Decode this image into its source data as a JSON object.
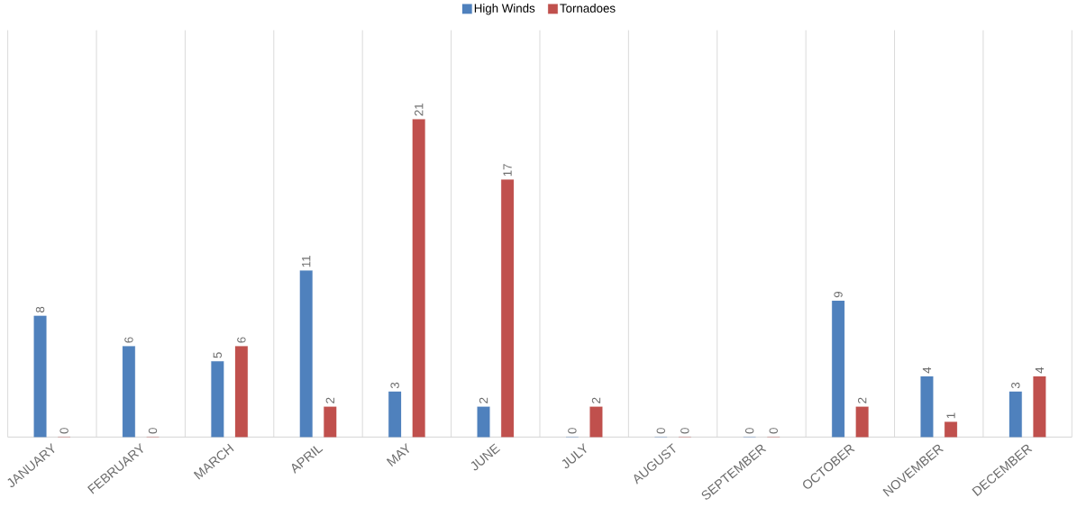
{
  "chart_data": {
    "type": "bar",
    "categories": [
      "JANUARY",
      "FEBRUARY",
      "MARCH",
      "APRIL",
      "MAY",
      "JUNE",
      "JULY",
      "AUGUST",
      "SEPTEMBER",
      "OCTOBER",
      "NOVEMBER",
      "DECEMBER"
    ],
    "series": [
      {
        "name": "High Winds",
        "color": "#4f81bd",
        "values": [
          8,
          6,
          5,
          11,
          3,
          2,
          0,
          0,
          0,
          9,
          4,
          3
        ]
      },
      {
        "name": "Tornadoes",
        "color": "#c0504d",
        "values": [
          0,
          0,
          6,
          2,
          21,
          17,
          2,
          0,
          0,
          2,
          1,
          4
        ]
      }
    ],
    "data_labels": true,
    "grid": "x",
    "legend": "top"
  }
}
